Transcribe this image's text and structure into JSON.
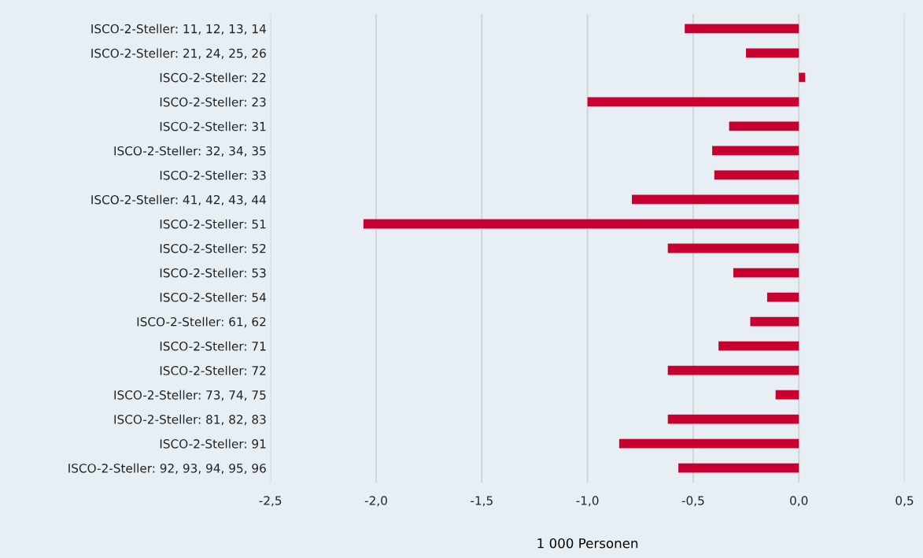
{
  "chart_data": {
    "type": "bar",
    "orientation": "horizontal",
    "xlabel": "1 000 Personen",
    "categories": [
      "ISCO-2-Steller: 11, 12, 13, 14",
      "ISCO-2-Steller: 21, 24, 25, 26",
      "ISCO-2-Steller: 22",
      "ISCO-2-Steller: 23",
      "ISCO-2-Steller: 31",
      "ISCO-2-Steller: 32, 34, 35",
      "ISCO-2-Steller: 33",
      "ISCO-2-Steller: 41, 42, 43, 44",
      "ISCO-2-Steller: 51",
      "ISCO-2-Steller: 52",
      "ISCO-2-Steller: 53",
      "ISCO-2-Steller: 54",
      "ISCO-2-Steller: 61, 62",
      "ISCO-2-Steller: 71",
      "ISCO-2-Steller: 72",
      "ISCO-2-Steller: 73, 74, 75",
      "ISCO-2-Steller: 81, 82, 83",
      "ISCO-2-Steller: 91",
      "ISCO-2-Steller: 92, 93, 94, 95, 96"
    ],
    "values": [
      -0.54,
      -0.25,
      0.03,
      -1.0,
      -0.33,
      -0.41,
      -0.4,
      -0.79,
      -2.06,
      -0.62,
      -0.31,
      -0.15,
      -0.23,
      -0.38,
      -0.62,
      -0.11,
      -0.62,
      -0.85,
      -0.57
    ],
    "color": "#c8002f",
    "xlim": [
      -2.5,
      0.5
    ],
    "xticks": [
      {
        "value": -2.5,
        "label": "-2,5"
      },
      {
        "value": -2.0,
        "label": "-2,0"
      },
      {
        "value": -1.5,
        "label": "-1,5"
      },
      {
        "value": -1.0,
        "label": "-1,0"
      },
      {
        "value": -0.5,
        "label": "-0,5"
      },
      {
        "value": 0.0,
        "label": "0,0"
      },
      {
        "value": 0.5,
        "label": "0,5"
      }
    ],
    "grid": "x",
    "legend": false
  }
}
